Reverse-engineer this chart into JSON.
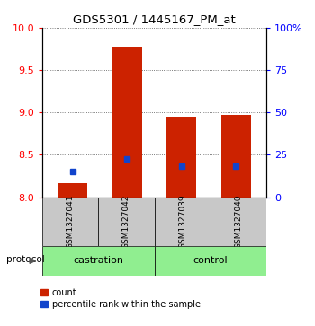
{
  "title": "GDS5301 / 1445167_PM_at",
  "samples": [
    "GSM1327041",
    "GSM1327042",
    "GSM1327039",
    "GSM1327040"
  ],
  "groups": [
    "castration",
    "castration",
    "control",
    "control"
  ],
  "bar_bottom": 8.0,
  "bar_tops": [
    8.17,
    9.78,
    8.95,
    8.97
  ],
  "percentile_values": [
    8.3,
    8.45,
    8.37,
    8.37
  ],
  "ylim_left": [
    8.0,
    10.0
  ],
  "ylim_right": [
    0,
    100
  ],
  "yticks_left": [
    8.0,
    8.5,
    9.0,
    9.5,
    10.0
  ],
  "yticks_right": [
    0,
    25,
    50,
    75,
    100
  ],
  "ytick_labels_right": [
    "0",
    "25",
    "50",
    "75",
    "100%"
  ],
  "bar_color": "#CC2200",
  "percentile_color": "#1144CC",
  "bg_color": "#FFFFFF",
  "sample_bg": "#C8C8C8",
  "group_color": "#90EE90",
  "legend_count_label": "count",
  "legend_percentile_label": "percentile rank within the sample",
  "protocol_label": "protocol",
  "bar_width": 0.55,
  "xlim": [
    -0.55,
    3.55
  ]
}
